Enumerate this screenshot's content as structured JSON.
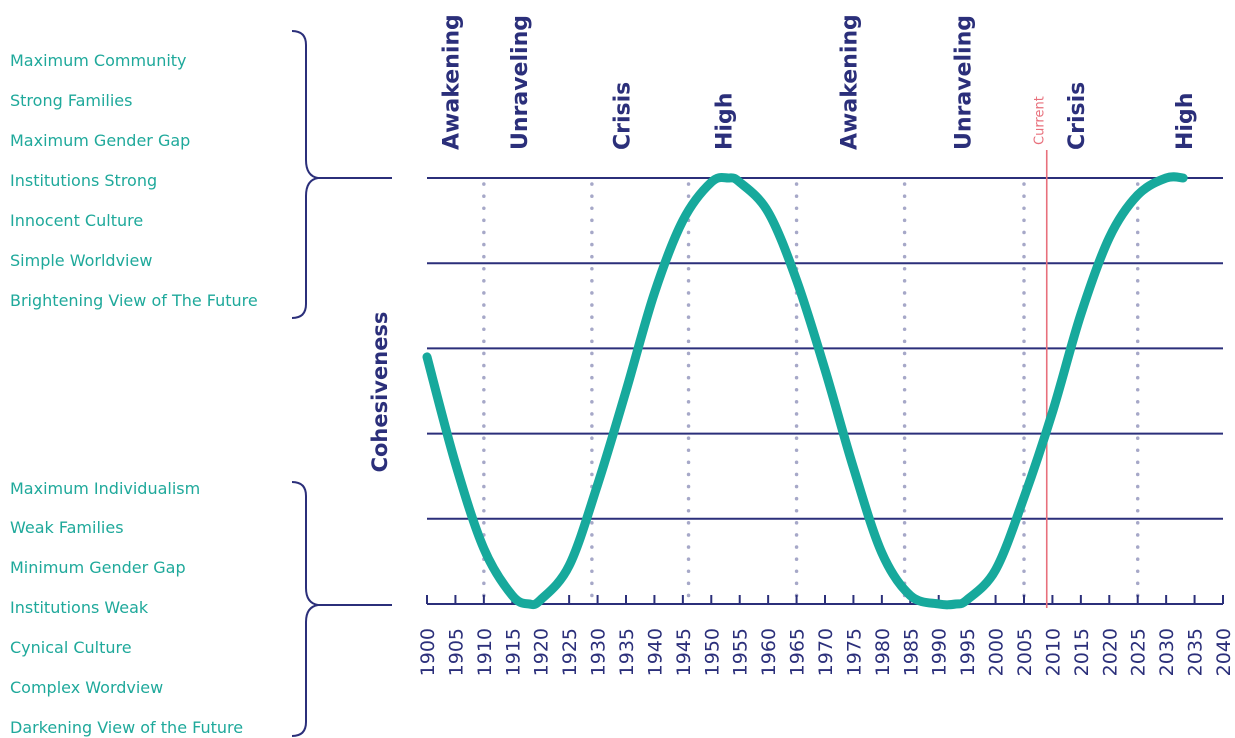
{
  "upper_traits": [
    "Maximum Community",
    "Strong Families",
    "Maximum Gender Gap",
    "Institutions Strong",
    "Innocent Culture",
    "Simple Worldview",
    "Brightening View of The Future"
  ],
  "lower_traits": [
    "Maximum Individualism",
    "Weak Families",
    "Minimum Gender Gap",
    "Institutions Weak",
    "Cynical Culture",
    "Complex Wordview",
    "Darkening View of the Future"
  ],
  "colors": {
    "curve": "#17a99c",
    "grid": "#2b2f7a",
    "phase_line": "#a6a8c8",
    "current": "#e8707c",
    "trait_text": "#1fa99b",
    "label_text": "#2b2f7a"
  },
  "chart_data": {
    "type": "line",
    "title": "",
    "ylabel": "Cohesiveness",
    "xlabel": "",
    "xlim": [
      1900,
      2040
    ],
    "ylim": [
      0,
      1
    ],
    "x_ticks": [
      "1900",
      "1905",
      "1910",
      "1915",
      "1920",
      "1925",
      "1930",
      "1935",
      "1940",
      "1945",
      "1950",
      "1955",
      "1960",
      "1965",
      "1970",
      "1975",
      "1980",
      "1985",
      "1990",
      "1995",
      "2000",
      "2005",
      "2010",
      "2015",
      "2020",
      "2025",
      "2030",
      "2035",
      "2040"
    ],
    "grid_levels": [
      0.2,
      0.4,
      0.6,
      0.8,
      1.0
    ],
    "series": [
      {
        "name": "",
        "x": [
          1900,
          1905,
          1910,
          1915,
          1918,
          1920,
          1925,
          1930,
          1935,
          1940,
          1945,
          1950,
          1953,
          1955,
          1960,
          1965,
          1970,
          1975,
          1980,
          1985,
          1990,
          1993,
          1995,
          2000,
          2005,
          2010,
          2015,
          2020,
          2025,
          2030,
          2033
        ],
        "y": [
          0.58,
          0.33,
          0.13,
          0.02,
          0.0,
          0.01,
          0.09,
          0.28,
          0.5,
          0.73,
          0.9,
          0.99,
          1.0,
          0.99,
          0.92,
          0.76,
          0.55,
          0.32,
          0.12,
          0.02,
          0.0,
          0.0,
          0.01,
          0.08,
          0.25,
          0.45,
          0.68,
          0.86,
          0.96,
          1.0,
          1.0
        ]
      }
    ],
    "phase_lines": [
      1910,
      1929,
      1946,
      1965,
      1984,
      2005,
      2025
    ],
    "phases": [
      {
        "label": "Awakening",
        "x": 1904
      },
      {
        "label": "Unraveling",
        "x": 1916
      },
      {
        "label": "Crisis",
        "x": 1934
      },
      {
        "label": "High",
        "x": 1952
      },
      {
        "label": "Awakening",
        "x": 1974
      },
      {
        "label": "Unraveling",
        "x": 1994
      },
      {
        "label": "Crisis",
        "x": 2014
      },
      {
        "label": "High",
        "x": 2033
      }
    ],
    "current_marker": {
      "label": "Current",
      "x": 2009
    }
  }
}
